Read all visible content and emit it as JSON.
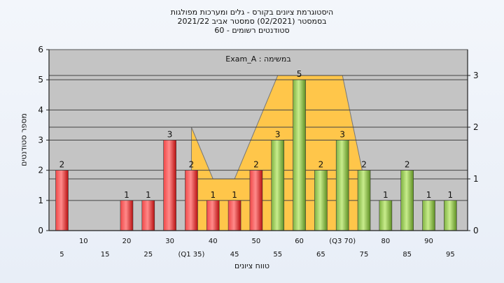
{
  "title_lines": [
    "היסטוגרמת ציונים בקורס - גלים ומערכות מפולגות",
    "בסמסטר  (02/2021)  סמסטר אביב 2021/22",
    "סטודנטים רשומים - 60"
  ],
  "colors": {
    "background": "#f3f6fb",
    "plot_bg": "#c4c4c4",
    "red": "#e02525",
    "green": "#8bc34a",
    "area": "#ffc64a"
  },
  "chart_data": {
    "type": "bar",
    "xlabel": "טווח ציונים",
    "ylabel": "מספר סטודנטים",
    "annotation": "Exam_A : במשימה",
    "ylim": [
      0,
      6
    ],
    "yticks": [
      0,
      1,
      2,
      3,
      4,
      5,
      6
    ],
    "y2lim": [
      0,
      3.5
    ],
    "y2ticks": [
      0,
      1,
      2,
      3
    ],
    "grid": true,
    "categories": [
      "5",
      "10",
      "15",
      "20",
      "25",
      "30",
      "35",
      "40",
      "45",
      "50",
      "55",
      "60",
      "65",
      "70",
      "75",
      "80",
      "85",
      "90",
      "95"
    ],
    "x_tick_labels": [
      "5",
      "10",
      "15",
      "20",
      "25",
      "30",
      "(Q1 35)",
      "40",
      "45",
      "50",
      "55",
      "60",
      "65",
      "(Q3 70)",
      "75",
      "80",
      "85",
      "90",
      "95"
    ],
    "values": [
      2,
      0,
      0,
      1,
      1,
      3,
      2,
      1,
      1,
      2,
      3,
      5,
      2,
      3,
      2,
      1,
      2,
      1,
      1
    ],
    "series_colors": [
      "red",
      "red",
      "red",
      "red",
      "red",
      "red",
      "red",
      "red",
      "red",
      "red",
      "green",
      "green",
      "green",
      "green",
      "green",
      "green",
      "green",
      "green",
      "green"
    ],
    "area_series_y2": [
      {
        "x": 35,
        "y": 2
      },
      {
        "x": 40,
        "y": 1
      },
      {
        "x": 45,
        "y": 1
      },
      {
        "x": 55,
        "y": 3
      },
      {
        "x": 65,
        "y": 3
      },
      {
        "x": 70,
        "y": 3
      },
      {
        "x": 75,
        "y": 1
      }
    ]
  }
}
